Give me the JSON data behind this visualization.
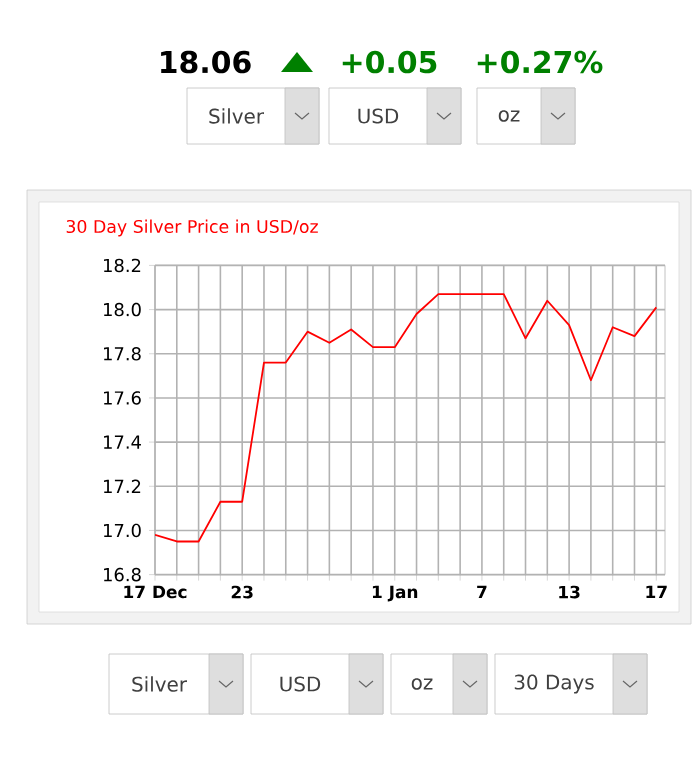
{
  "chart_data": {
    "type": "line",
    "title": "30 Day Silver Price in USD/oz",
    "categories": [
      "17 Dec",
      null,
      null,
      null,
      "23",
      null,
      null,
      null,
      null,
      null,
      null,
      "1 Jan",
      null,
      null,
      null,
      "7",
      null,
      null,
      null,
      "13",
      null,
      null,
      null,
      "17"
    ],
    "values": [
      16.98,
      16.95,
      16.95,
      17.13,
      17.13,
      17.76,
      17.76,
      17.9,
      17.85,
      17.91,
      17.83,
      17.83,
      17.98,
      18.07,
      18.07,
      18.07,
      18.07,
      17.87,
      18.04,
      17.93,
      17.68,
      17.92,
      17.88,
      18.01
    ],
    "color": "#ff0000",
    "ylim": [
      16.8,
      18.2
    ],
    "yticks": [
      16.8,
      {
        "value": 17.0,
        "label": "17.0"
      },
      17.2,
      17.4,
      17.6,
      17.8,
      {
        "value": 18.0,
        "label": "18.0"
      },
      18.2
    ],
    "grid": true,
    "marker": "none",
    "annotations": [
      "18.06",
      "+0.05",
      "+0.27%",
      "Silver",
      "USD",
      "oz",
      "Silver",
      "USD",
      "oz",
      "30 Days"
    ]
  }
}
